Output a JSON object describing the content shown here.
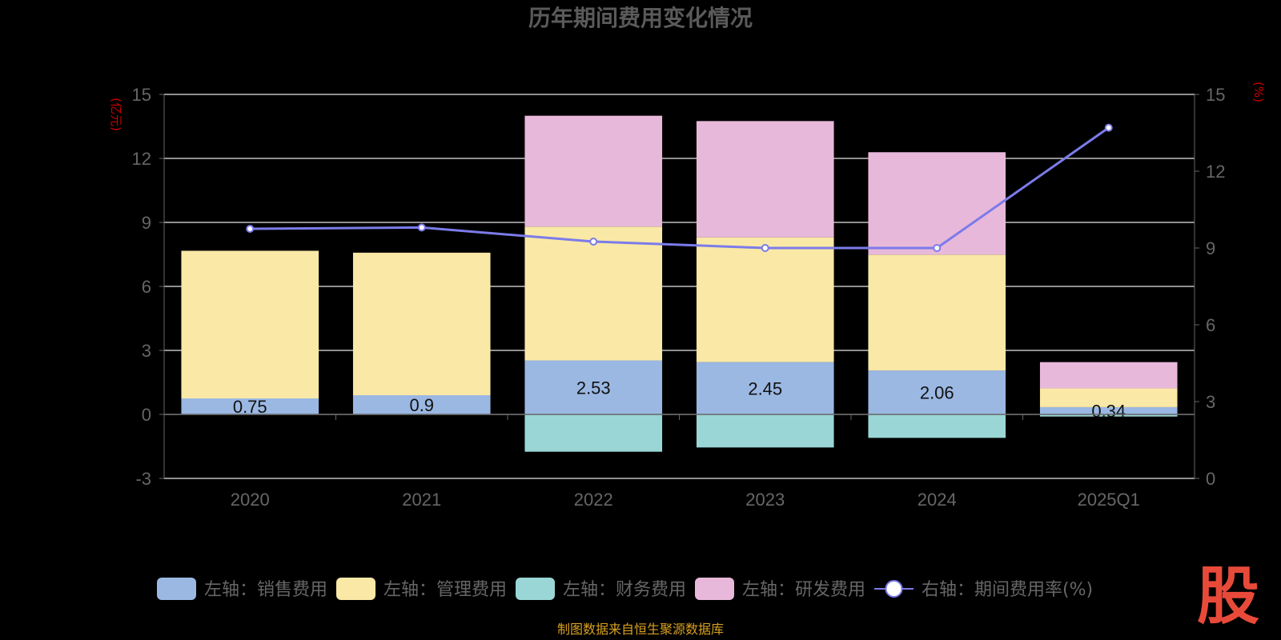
{
  "chart_data": {
    "type": "bar",
    "title": "历年期间费用变化情况",
    "categories": [
      "2020",
      "2021",
      "2022",
      "2023",
      "2024",
      "2025Q1"
    ],
    "y_left": {
      "unit": "(亿元)",
      "ylim": [
        -3,
        15
      ],
      "ticks": [
        15,
        12,
        9,
        6,
        3,
        0,
        -3
      ]
    },
    "y_right": {
      "unit": "(%)",
      "ylim": [
        0,
        15
      ],
      "ticks": [
        15,
        12,
        9,
        6,
        3,
        0
      ]
    },
    "grid": true,
    "legend_position": "bottom",
    "series": [
      {
        "name": "左轴：销售费用",
        "type": "bar",
        "axis": "left",
        "color": "#9bb8e3",
        "values": [
          0.75,
          0.9,
          2.53,
          2.45,
          2.06,
          0.34
        ],
        "show_labels": true
      },
      {
        "name": "左轴：管理费用",
        "type": "bar",
        "axis": "left",
        "color": "#fae8a6",
        "values": [
          6.92,
          6.68,
          6.27,
          5.85,
          5.43,
          0.88
        ],
        "show_labels": false
      },
      {
        "name": "左轴：财务费用",
        "type": "bar",
        "axis": "left",
        "color": "#9ad6d6",
        "values": [
          0.0,
          0.0,
          -1.75,
          -1.55,
          -1.1,
          -0.1
        ],
        "show_labels": false
      },
      {
        "name": "左轴：研发费用",
        "type": "bar",
        "axis": "left",
        "color": "#e8b8da",
        "values": [
          0.0,
          0.0,
          5.2,
          5.45,
          4.8,
          1.23
        ],
        "show_labels": false
      },
      {
        "name": "右轴：期间费用率(%)",
        "type": "line",
        "axis": "right",
        "color": "#7b7bea",
        "values": [
          9.75,
          9.8,
          9.25,
          9.0,
          9.0,
          13.7
        ],
        "show_labels": false
      }
    ]
  },
  "footer": {
    "source": "制图数据来自恒生聚源数据库",
    "logo_char": "股"
  }
}
